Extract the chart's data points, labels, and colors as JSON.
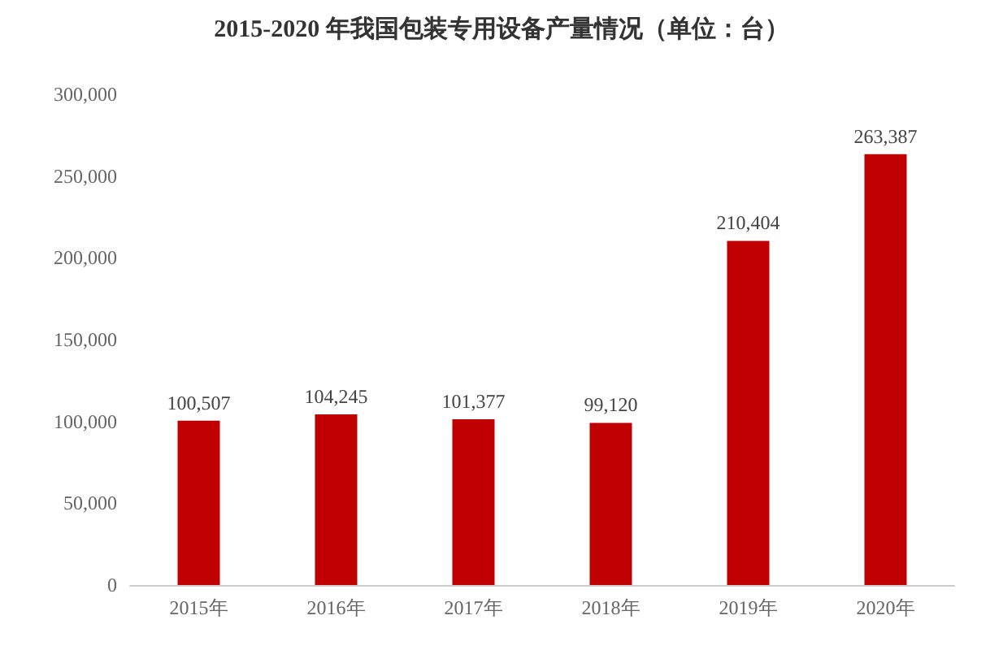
{
  "chart_data": {
    "type": "bar",
    "title": "2015-2020 年我国包装专用设备产量情况（单位：台）",
    "categories": [
      "2015年",
      "2016年",
      "2017年",
      "2018年",
      "2019年",
      "2020年"
    ],
    "values": [
      100507,
      104245,
      101377,
      99120,
      210404,
      263387
    ],
    "value_labels": [
      "100,507",
      "104,245",
      "101,377",
      "99,120",
      "210,404",
      "263,387"
    ],
    "color": "#c00000",
    "ylim": [
      0,
      300000
    ],
    "yticks": [
      {
        "value": 0,
        "label": "0"
      },
      {
        "value": 50000,
        "label": "50,000"
      },
      {
        "value": 100000,
        "label": "100,000"
      },
      {
        "value": 150000,
        "label": "150,000"
      },
      {
        "value": 200000,
        "label": "200,000"
      },
      {
        "value": 250000,
        "label": "250,000"
      },
      {
        "value": 300000,
        "label": "300,000"
      }
    ],
    "grid": false
  }
}
